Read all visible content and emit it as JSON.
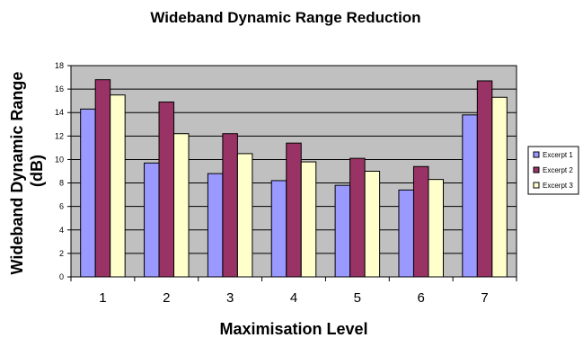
{
  "chart_data": {
    "type": "bar",
    "title": "Wideband Dynamic Range Reduction",
    "xlabel": "Maximisation Level",
    "ylabel": "Wideband Dynamic Range (dB)",
    "ylabel_lines": [
      "Wideband Dynamic Range",
      "(dB)"
    ],
    "ylim": [
      0,
      18
    ],
    "yticks": [
      "0",
      "2",
      "4",
      "6",
      "8",
      "10",
      "12",
      "14",
      "16",
      "18"
    ],
    "categories": [
      "1",
      "2",
      "3",
      "4",
      "5",
      "6",
      "7"
    ],
    "grid": true,
    "legend_position": "right",
    "plot_background": "#c0c0c0",
    "series": [
      {
        "name": "Excerpt 1",
        "color": "#9999ff",
        "values": [
          14.3,
          9.7,
          8.8,
          8.2,
          7.8,
          7.4,
          13.8
        ]
      },
      {
        "name": "Excerpt 2",
        "color": "#993366",
        "values": [
          16.8,
          14.9,
          12.2,
          11.4,
          10.1,
          9.4,
          16.7
        ]
      },
      {
        "name": "Excerpt 3",
        "color": "#ffffcc",
        "values": [
          15.5,
          12.2,
          10.5,
          9.8,
          9.0,
          8.3,
          15.3
        ]
      }
    ]
  }
}
